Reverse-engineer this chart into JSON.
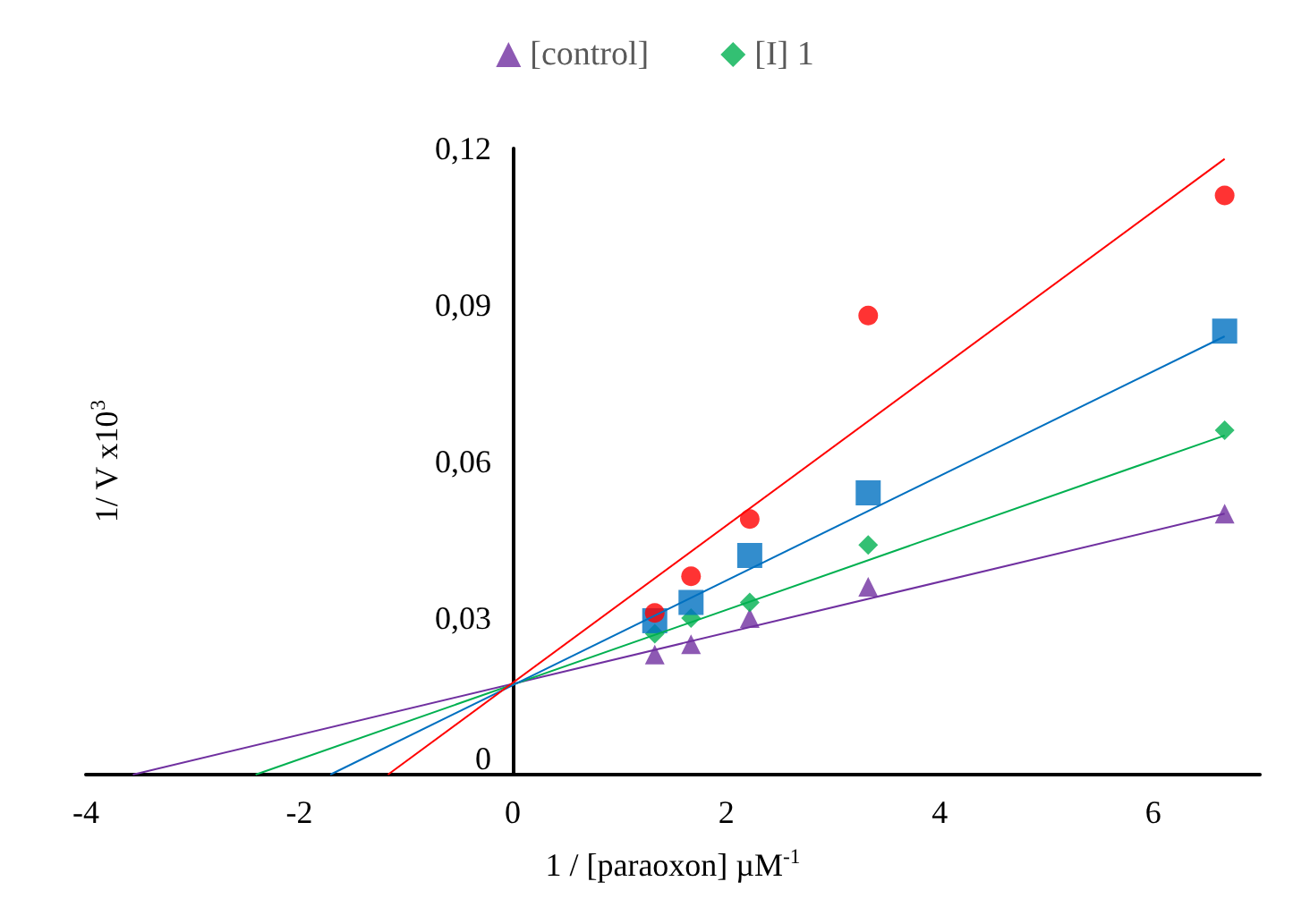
{
  "chart_data": {
    "type": "scatter",
    "xlabel": "1 / [paraoxon] µM$^{-1}$",
    "ylabel": "1/ V x10$^{3}$",
    "x": [
      1.33,
      1.67,
      2.22,
      3.33,
      6.67
    ],
    "series": [
      {
        "name": "[control]",
        "color": "#7030a0",
        "marker": "triangle",
        "values": [
          0.023,
          0.025,
          0.03,
          0.036,
          0.05
        ]
      },
      {
        "name": "[I] 1",
        "color": "#00b050",
        "marker": "diamond",
        "values": [
          0.027,
          0.03,
          0.033,
          0.044,
          0.066
        ]
      },
      {
        "color": "#0070c0",
        "marker": "square",
        "values": [
          0.0295,
          0.033,
          0.042,
          0.054,
          0.085
        ]
      },
      {
        "color": "#ff0000",
        "marker": "circle",
        "values": [
          0.031,
          0.038,
          0.049,
          0.088,
          0.111
        ]
      },
      {
        "type": "line",
        "color": "#7030a0",
        "marker": "none",
        "x": [
          -3.56,
          6.67
        ],
        "values": [
          0,
          0.05
        ]
      },
      {
        "type": "line",
        "color": "#00b050",
        "marker": "none",
        "x": [
          -2.41,
          6.67
        ],
        "values": [
          0,
          0.065
        ]
      },
      {
        "type": "line",
        "color": "#0070c0",
        "marker": "none",
        "x": [
          -1.71,
          6.67
        ],
        "values": [
          0,
          0.084
        ]
      },
      {
        "type": "line",
        "color": "#ff0000",
        "marker": "none",
        "x": [
          -1.17,
          6.67
        ],
        "values": [
          0,
          0.118
        ]
      }
    ],
    "xlim": [
      -4,
      7
    ],
    "xticks": [
      -4,
      -2,
      0,
      2,
      4,
      6
    ],
    "ylim": [
      0,
      0.12
    ],
    "yticks": [
      0,
      {
        "value": 0.03,
        "label": "0,03"
      },
      {
        "value": 0.06,
        "label": "0,06"
      },
      {
        "value": 0.09,
        "label": "0,09"
      },
      {
        "value": 0.12,
        "label": "0,12"
      }
    ],
    "grid": false,
    "legend": "top"
  }
}
